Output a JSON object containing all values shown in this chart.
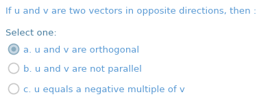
{
  "title": "If u and v are two vectors in opposite directions, then :",
  "select_label": "Select one:",
  "options": [
    "a. u and v are orthogonal",
    "b. u and v are not parallel",
    "c. u equals a negative multiple of v"
  ],
  "selected_index": 0,
  "bg_color": "#ffffff",
  "title_color": "#5b9bd5",
  "select_color": "#4a7fa0",
  "option_color": "#5b9bd5",
  "radio_fill_selected": "#c8d8e4",
  "radio_fill_unselected": "#ffffff",
  "radio_border_selected": "#8aacbf",
  "radio_border_unselected": "#c8c8c8",
  "title_fontsize": 9.5,
  "select_fontsize": 9.5,
  "option_fontsize": 9.5
}
